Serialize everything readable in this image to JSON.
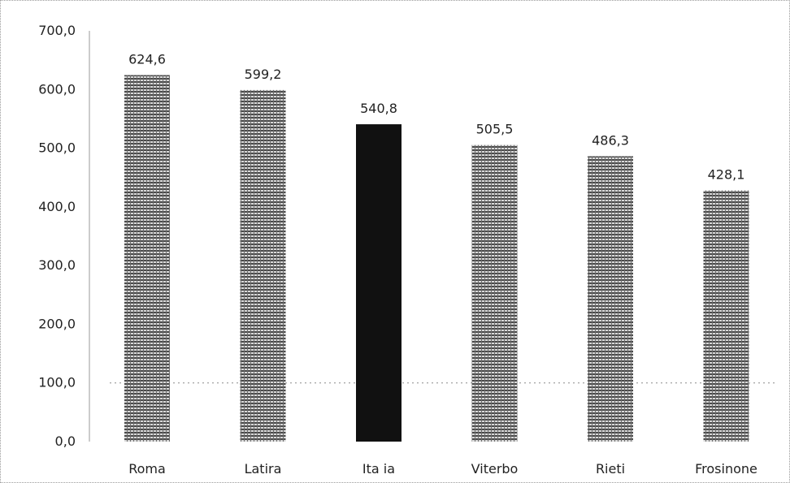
{
  "chart_data": {
    "type": "bar",
    "categories": [
      "Roma",
      "Latira",
      "Ita ia",
      "Viterbo",
      "Rieti",
      "Frosinone"
    ],
    "values": [
      624.6,
      599.2,
      540.8,
      505.5,
      486.3,
      428.1
    ],
    "data_labels": [
      "624,6",
      "599,2",
      "540,8",
      "505,5",
      "486,3",
      "428,1"
    ],
    "y_ticks": [
      "0,0",
      "100,0",
      "200,0",
      "300,0",
      "400,0",
      "500,0",
      "600,0",
      "700,0"
    ],
    "ylim": [
      0,
      700
    ],
    "title": "",
    "xlabel": "",
    "ylabel": "",
    "grid": false,
    "legend": "none",
    "colors": {
      "bar": "#8c8c8c",
      "highlight": "#111111",
      "axis": "#999999"
    },
    "highlight_index": 2
  }
}
